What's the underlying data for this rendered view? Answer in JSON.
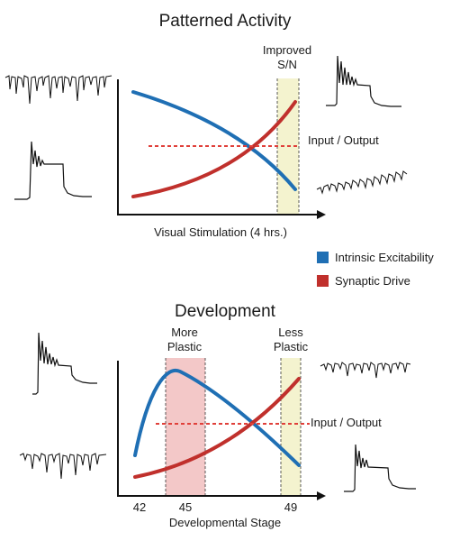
{
  "top": {
    "title": "Patterned Activity",
    "highlight_label": [
      "Improved",
      "S/N"
    ],
    "io_label": "Input / Output",
    "xlabel": "Visual Stimulation (4 hrs.)"
  },
  "legend": {
    "items": [
      {
        "label": "Intrinsic Excitability",
        "color": "#1f6fb4"
      },
      {
        "label": "Synaptic Drive",
        "color": "#c0302c"
      }
    ]
  },
  "bottom": {
    "title": "Development",
    "highlight1_label": [
      "More",
      "Plastic"
    ],
    "highlight2_label": [
      "Less",
      "Plastic"
    ],
    "io_label": "Input / Output",
    "ticks": [
      "42",
      "45",
      "49"
    ],
    "xlabel": "Developmental Stage"
  },
  "colors": {
    "intrinsic": "#1f6fb4",
    "synaptic": "#c0302c",
    "io_line": "#e0403a",
    "yellow_band": "#f4f3cf",
    "pink_band": "#f3c8c8",
    "axis": "#111111"
  }
}
